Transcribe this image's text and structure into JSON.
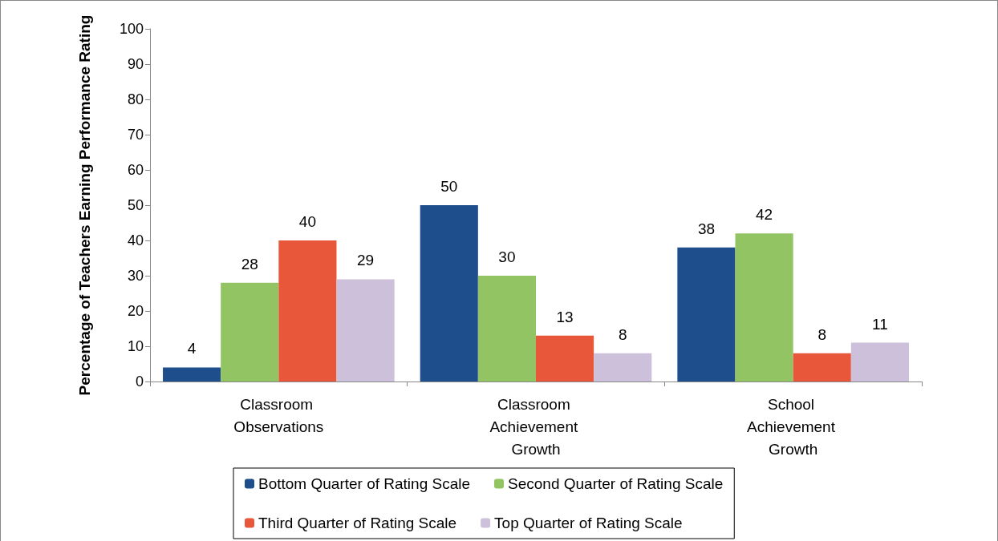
{
  "chart_data": {
    "type": "bar",
    "ylabel": "Percentage of Teachers Earning Performance Rating",
    "categories": [
      "Classroom Observations",
      "Classroom Achievement Growth",
      "School Achievement Growth"
    ],
    "series": [
      {
        "name": "Bottom Quarter of Rating Scale",
        "color": "#1f4e8c",
        "values": [
          4,
          50,
          38
        ]
      },
      {
        "name": "Second Quarter of Rating Scale",
        "color": "#92c464",
        "values": [
          28,
          30,
          42
        ]
      },
      {
        "name": "Third Quarter of Rating Scale",
        "color": "#e8573a",
        "values": [
          40,
          13,
          8
        ]
      },
      {
        "name": "Top Quarter of Rating Scale",
        "color": "#ccc0da",
        "values": [
          29,
          8,
          11
        ]
      }
    ],
    "ylim": [
      0,
      100
    ],
    "yticks": [
      0,
      10,
      20,
      30,
      40,
      50,
      60,
      70,
      80,
      90,
      100
    ],
    "grid": false,
    "legend": "bottom",
    "data_labels": true
  }
}
